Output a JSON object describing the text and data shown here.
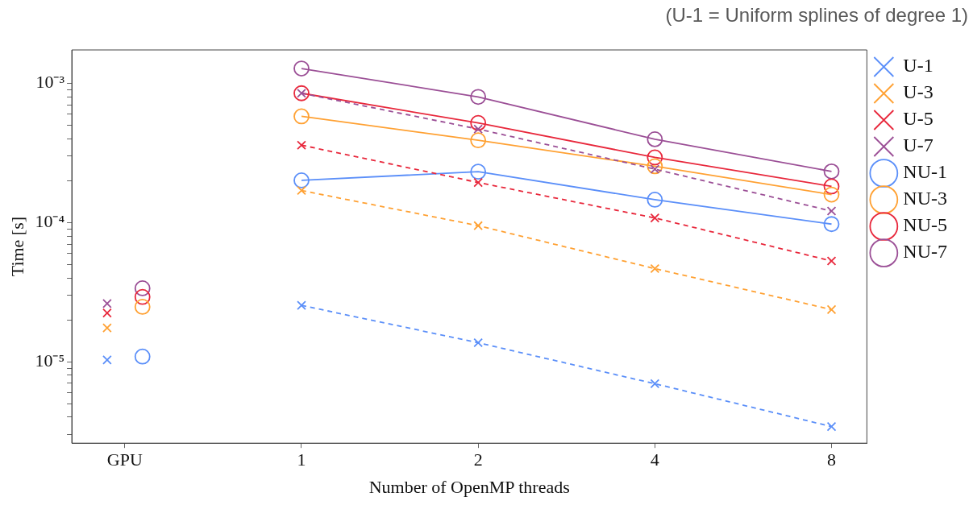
{
  "chart_data": {
    "type": "line",
    "xlabel": "Number of OpenMP threads",
    "ylabel": "Time [s]",
    "annotations": [
      "(U-1 = Uniform splines of degree 1)"
    ],
    "categories": [
      "GPU",
      "1",
      "2",
      "4",
      "8"
    ],
    "log": "y",
    "ylim": [
      2.6e-06,
      0.00174
    ],
    "yticks": [
      {
        "value": 3e-06,
        "label": null
      },
      {
        "value": 4e-06,
        "label": null
      },
      {
        "value": 5e-06,
        "label": null
      },
      {
        "value": 6e-06,
        "label": null
      },
      {
        "value": 7e-06,
        "label": null
      },
      {
        "value": 8e-06,
        "label": null
      },
      {
        "value": 9e-06,
        "label": null
      },
      {
        "value": 1e-05,
        "label": "10⁻⁵"
      },
      {
        "value": 2e-05,
        "label": null
      },
      {
        "value": 3e-05,
        "label": null
      },
      {
        "value": 4e-05,
        "label": null
      },
      {
        "value": 5e-05,
        "label": null
      },
      {
        "value": 6e-05,
        "label": null
      },
      {
        "value": 7e-05,
        "label": null
      },
      {
        "value": 8e-05,
        "label": null
      },
      {
        "value": 9e-05,
        "label": null
      },
      {
        "value": 0.0001,
        "label": "10⁻⁴"
      },
      {
        "value": 0.0002,
        "label": null
      },
      {
        "value": 0.0003,
        "label": null
      },
      {
        "value": 0.0004,
        "label": null
      },
      {
        "value": 0.0005,
        "label": null
      },
      {
        "value": 0.0006,
        "label": null
      },
      {
        "value": 0.0007,
        "label": null
      },
      {
        "value": 0.0008,
        "label": null
      },
      {
        "value": 0.0009,
        "label": null
      },
      {
        "value": 0.001,
        "label": "10⁻³"
      }
    ],
    "grid": false,
    "legend": "right",
    "series": [
      {
        "name": "U-1",
        "color": "#5b8ff9",
        "marker": "cross",
        "line_style": "dashed",
        "values": [
          null,
          2.54e-05,
          1.37e-05,
          6.95e-06,
          3.42e-06
        ]
      },
      {
        "name": "U-3",
        "color": "#ffa133",
        "marker": "cross",
        "line_style": "dashed",
        "values": [
          null,
          0.00017,
          9.5e-05,
          4.67e-05,
          2.37e-05
        ]
      },
      {
        "name": "U-5",
        "color": "#e8283c",
        "marker": "cross",
        "line_style": "dashed",
        "values": [
          null,
          0.00036,
          0.000194,
          0.000108,
          5.3e-05
        ]
      },
      {
        "name": "U-7",
        "color": "#9b4f96",
        "marker": "cross",
        "line_style": "dashed",
        "values": [
          null,
          0.00085,
          0.00047,
          0.000242,
          0.000121
        ]
      },
      {
        "name": "NU-1",
        "color": "#5b8ff9",
        "marker": "circle",
        "line_style": "solid",
        "values": [
          null,
          0.000201,
          0.000232,
          0.000146,
          9.75e-05
        ]
      },
      {
        "name": "NU-3",
        "color": "#ffa133",
        "marker": "circle",
        "line_style": "solid",
        "values": [
          null,
          0.00058,
          0.00039,
          0.000254,
          0.000159
        ]
      },
      {
        "name": "NU-5",
        "color": "#e8283c",
        "marker": "circle",
        "line_style": "solid",
        "values": [
          null,
          0.00085,
          0.00052,
          0.000294,
          0.000182
        ]
      },
      {
        "name": "NU-7",
        "color": "#9b4f96",
        "marker": "circle",
        "line_style": "solid",
        "values": [
          null,
          0.00128,
          0.0008,
          0.000397,
          0.000233
        ]
      },
      {
        "type": "scatter",
        "color": "#5b8ff9",
        "marker": "cross",
        "values": [
          1.03e-05,
          null,
          null,
          null,
          null
        ]
      },
      {
        "type": "scatter",
        "color": "#ffa133",
        "marker": "cross",
        "values": [
          1.75e-05,
          null,
          null,
          null,
          null
        ]
      },
      {
        "type": "scatter",
        "color": "#e8283c",
        "marker": "cross",
        "values": [
          2.24e-05,
          null,
          null,
          null,
          null
        ]
      },
      {
        "type": "scatter",
        "color": "#9b4f96",
        "marker": "cross",
        "values": [
          2.62e-05,
          null,
          null,
          null,
          null
        ]
      },
      {
        "type": "scatter",
        "color": "#5b8ff9",
        "marker": "circle",
        "values": [
          1.09e-05,
          null,
          null,
          null,
          null
        ]
      },
      {
        "type": "scatter",
        "color": "#ffa133",
        "marker": "circle",
        "values": [
          2.48e-05,
          null,
          null,
          null,
          null
        ]
      },
      {
        "type": "scatter",
        "color": "#e8283c",
        "marker": "circle",
        "values": [
          2.92e-05,
          null,
          null,
          null,
          null
        ]
      },
      {
        "type": "scatter",
        "color": "#9b4f96",
        "marker": "circle",
        "values": [
          3.37e-05,
          null,
          null,
          null,
          null
        ]
      }
    ]
  }
}
